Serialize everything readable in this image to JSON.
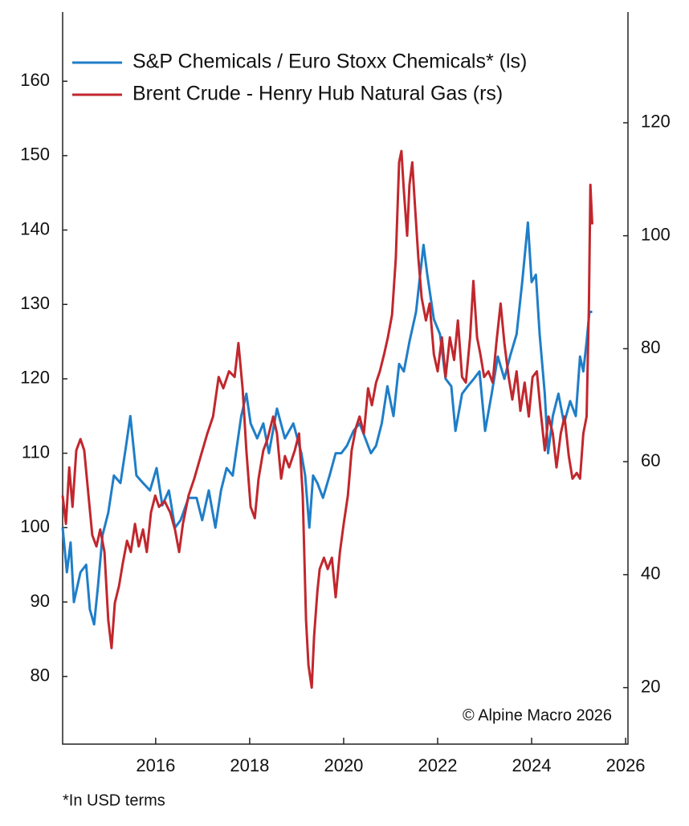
{
  "chart_data": {
    "type": "line",
    "series": [
      {
        "name": "S&P Chemicals / Euro Stoxx Chemicals* (ls)",
        "color": "#1f7ec8",
        "axis": "y",
        "x": [
          2014.02,
          2014.11,
          2014.19,
          2014.26,
          2014.4,
          2014.52,
          2014.6,
          2014.69,
          2014.77,
          2014.87,
          2014.99,
          2015.11,
          2015.25,
          2015.37,
          2015.46,
          2015.59,
          2015.73,
          2015.88,
          2016.02,
          2016.14,
          2016.28,
          2016.41,
          2016.53,
          2016.7,
          2016.87,
          2016.99,
          2017.13,
          2017.27,
          2017.39,
          2017.51,
          2017.64,
          2017.82,
          2017.93,
          2018.02,
          2018.16,
          2018.29,
          2018.41,
          2018.58,
          2018.75,
          2018.93,
          2019.1,
          2019.18,
          2019.27,
          2019.35,
          2019.44,
          2019.56,
          2019.7,
          2019.83,
          2019.95,
          2020.07,
          2020.21,
          2020.34,
          2020.46,
          2020.58,
          2020.69,
          2020.81,
          2020.93,
          2021.06,
          2021.18,
          2021.28,
          2021.4,
          2021.54,
          2021.61,
          2021.7,
          2021.78,
          2021.92,
          2022.05,
          2022.17,
          2022.29,
          2022.38,
          2022.52,
          2022.64,
          2022.77,
          2022.89,
          2023.01,
          2023.15,
          2023.28,
          2023.42,
          2023.54,
          2023.68,
          2023.8,
          2023.92,
          2024.0,
          2024.09,
          2024.17,
          2024.28,
          2024.35,
          2024.45,
          2024.57,
          2024.69,
          2024.82,
          2024.94,
          2025.03,
          2025.1,
          2025.17,
          2025.23,
          2025.29
        ],
        "values": [
          100,
          94,
          98,
          90,
          94,
          95,
          89,
          87,
          92,
          99,
          102,
          107,
          106,
          111,
          115,
          107,
          106,
          105,
          108,
          103,
          105,
          100,
          101,
          104,
          104,
          101,
          105,
          100,
          105,
          108,
          107,
          115,
          118,
          114,
          112,
          114,
          110,
          116,
          112,
          114,
          110,
          107,
          100,
          107,
          106,
          104,
          107,
          110,
          110,
          111,
          113,
          114,
          112,
          110,
          111,
          114,
          119,
          115,
          122,
          121,
          125,
          129,
          133,
          138,
          134,
          128,
          126,
          120,
          119,
          113,
          118,
          119,
          120,
          121,
          113,
          118,
          123,
          120,
          123,
          126,
          133,
          141,
          133,
          134,
          126,
          118,
          110,
          115,
          118,
          114,
          117,
          115,
          123,
          121,
          125,
          129,
          129
        ]
      },
      {
        "name": "Brent Crude - Henry Hub Natural Gas (rs)",
        "color": "#c1272d",
        "axis": "y2",
        "x": [
          2014.02,
          2014.09,
          2014.16,
          2014.23,
          2014.31,
          2014.4,
          2014.48,
          2014.57,
          2014.65,
          2014.74,
          2014.82,
          2014.91,
          2014.99,
          2015.06,
          2015.13,
          2015.22,
          2015.3,
          2015.39,
          2015.47,
          2015.56,
          2015.64,
          2015.73,
          2015.81,
          2015.9,
          2015.99,
          2016.07,
          2016.19,
          2016.31,
          2016.41,
          2016.5,
          2016.58,
          2016.7,
          2016.82,
          2016.96,
          2017.1,
          2017.22,
          2017.34,
          2017.44,
          2017.56,
          2017.68,
          2017.76,
          2017.85,
          2017.93,
          2018.02,
          2018.11,
          2018.19,
          2018.29,
          2018.38,
          2018.5,
          2018.58,
          2018.67,
          2018.75,
          2018.84,
          2018.96,
          2019.05,
          2019.13,
          2019.2,
          2019.25,
          2019.32,
          2019.37,
          2019.44,
          2019.49,
          2019.58,
          2019.66,
          2019.75,
          2019.83,
          2019.92,
          2020.0,
          2020.09,
          2020.17,
          2020.26,
          2020.34,
          2020.43,
          2020.52,
          2020.6,
          2020.69,
          2020.77,
          2020.86,
          2020.94,
          2021.03,
          2021.11,
          2021.18,
          2021.23,
          2021.28,
          2021.35,
          2021.4,
          2021.46,
          2021.52,
          2021.59,
          2021.66,
          2021.75,
          2021.83,
          2021.92,
          2022.0,
          2022.09,
          2022.17,
          2022.26,
          2022.35,
          2022.43,
          2022.52,
          2022.6,
          2022.69,
          2022.76,
          2022.84,
          2022.91,
          2022.99,
          2023.08,
          2023.17,
          2023.25,
          2023.34,
          2023.42,
          2023.51,
          2023.59,
          2023.68,
          2023.76,
          2023.85,
          2023.94,
          2024.02,
          2024.11,
          2024.19,
          2024.28,
          2024.36,
          2024.45,
          2024.53,
          2024.62,
          2024.7,
          2024.79,
          2024.87,
          2024.96,
          2025.03,
          2025.1,
          2025.17,
          2025.22,
          2025.25,
          2025.29
        ],
        "values": [
          54,
          49,
          59,
          52,
          62,
          64,
          62,
          54,
          47,
          45,
          48,
          44,
          32,
          27,
          35,
          38,
          42,
          46,
          44,
          49,
          45,
          48,
          44,
          51,
          54,
          52,
          53,
          51,
          48,
          44,
          49,
          54,
          57,
          61,
          65,
          68,
          75,
          73,
          76,
          75,
          81,
          73,
          62,
          52,
          50,
          57,
          62,
          64,
          68,
          65,
          57,
          61,
          59,
          62,
          65,
          54,
          32,
          24,
          20,
          29,
          37,
          41,
          43,
          41,
          43,
          36,
          44,
          49,
          54,
          62,
          66,
          68,
          65,
          73,
          70,
          74,
          76,
          79,
          82,
          86,
          96,
          113,
          115,
          108,
          100,
          109,
          113,
          105,
          96,
          89,
          85,
          88,
          79,
          76,
          82,
          75,
          82,
          78,
          85,
          75,
          74,
          82,
          92,
          82,
          79,
          75,
          76,
          74,
          81,
          88,
          81,
          75,
          71,
          76,
          69,
          74,
          68,
          75,
          76,
          69,
          62,
          68,
          65,
          59,
          65,
          68,
          61,
          57,
          58,
          57,
          65,
          68,
          88,
          109,
          102
        ]
      }
    ],
    "xlim": [
      2014.02,
      2026.05
    ],
    "xticks": [
      2016,
      2018,
      2020,
      2022,
      2024,
      2026
    ],
    "ylim": [
      70.9,
      169.3
    ],
    "yticks": [
      80,
      90,
      100,
      110,
      120,
      130,
      140,
      150,
      160
    ],
    "y2lim": [
      10,
      139.6
    ],
    "y2ticks": [
      20,
      40,
      60,
      80,
      100,
      120
    ],
    "legend": "top-left",
    "annotation": "© Alpine Macro 2026",
    "footnote": "*In USD terms"
  }
}
